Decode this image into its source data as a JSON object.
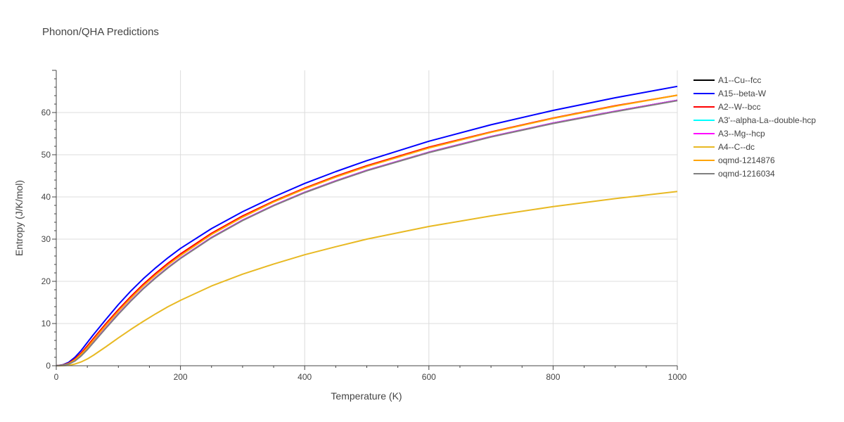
{
  "chart_data": {
    "type": "line",
    "title": "Phonon/QHA Predictions",
    "xlabel": "Temperature (K)",
    "ylabel": "Entropy (J/K/mol)",
    "xlim": [
      0,
      1000
    ],
    "ylim": [
      0,
      70
    ],
    "xticks": [
      0,
      200,
      400,
      600,
      800,
      1000
    ],
    "yticks": [
      0,
      10,
      20,
      30,
      40,
      50,
      60
    ],
    "grid": true,
    "legend_position": "right",
    "series": [
      {
        "name": "A1--Cu--fcc",
        "color": "#000000",
        "x": [
          0,
          10,
          20,
          30,
          40,
          50,
          60,
          80,
          100,
          120,
          140,
          160,
          180,
          200,
          250,
          300,
          350,
          400,
          450,
          500,
          600,
          700,
          800,
          900,
          1000
        ],
        "y": [
          0,
          0.1,
          0.4,
          1.2,
          2.4,
          3.9,
          5.6,
          9.0,
          12.3,
          15.4,
          18.3,
          20.9,
          23.3,
          25.5,
          30.4,
          34.5,
          38.0,
          41.1,
          43.8,
          46.3,
          50.6,
          54.3,
          57.5,
          60.3,
          62.9
        ]
      },
      {
        "name": "A15--beta-W",
        "color": "#0000ff",
        "x": [
          0,
          10,
          20,
          30,
          40,
          50,
          60,
          80,
          100,
          120,
          140,
          160,
          180,
          200,
          250,
          300,
          350,
          400,
          450,
          500,
          600,
          700,
          800,
          900,
          1000
        ],
        "y": [
          0,
          0.2,
          0.8,
          2.0,
          3.6,
          5.5,
          7.4,
          11.0,
          14.5,
          17.7,
          20.6,
          23.2,
          25.6,
          27.8,
          32.5,
          36.5,
          40.0,
          43.2,
          46.0,
          48.6,
          53.2,
          57.1,
          60.5,
          63.5,
          66.2
        ]
      },
      {
        "name": "A2--W--bcc",
        "color": "#ff0000",
        "x": [
          0,
          10,
          20,
          30,
          40,
          50,
          60,
          80,
          100,
          120,
          140,
          160,
          180,
          200,
          250,
          300,
          350,
          400,
          450,
          500,
          600,
          700,
          800,
          900,
          1000
        ],
        "y": [
          0,
          0.15,
          0.6,
          1.6,
          3.0,
          4.7,
          6.5,
          10.0,
          13.3,
          16.4,
          19.3,
          21.9,
          24.3,
          26.5,
          31.4,
          35.5,
          39.0,
          42.1,
          44.9,
          47.4,
          51.8,
          55.4,
          58.7,
          61.6,
          64.1
        ]
      },
      {
        "name": "A3'--alpha-La--double-hcp",
        "color": "#00ffff",
        "x": [
          0,
          10,
          20,
          30,
          40,
          50,
          60,
          80,
          100,
          120,
          140,
          160,
          180,
          200,
          250,
          300,
          350,
          400,
          450,
          500,
          600,
          700,
          800,
          900,
          1000
        ],
        "y": [
          0,
          0.1,
          0.4,
          1.2,
          2.4,
          3.9,
          5.6,
          9.0,
          12.3,
          15.4,
          18.3,
          20.9,
          23.3,
          25.5,
          30.4,
          34.5,
          38.0,
          41.1,
          43.8,
          46.3,
          50.6,
          54.3,
          57.5,
          60.3,
          62.9
        ]
      },
      {
        "name": "A3--Mg--hcp",
        "color": "#ff00ff",
        "x": [
          0,
          10,
          20,
          30,
          40,
          50,
          60,
          80,
          100,
          120,
          140,
          160,
          180,
          200,
          250,
          300,
          350,
          400,
          450,
          500,
          600,
          700,
          800,
          900,
          1000
        ],
        "y": [
          0,
          0.1,
          0.4,
          1.2,
          2.4,
          3.9,
          5.6,
          9.0,
          12.3,
          15.4,
          18.3,
          20.9,
          23.3,
          25.5,
          30.4,
          34.5,
          38.0,
          41.1,
          43.8,
          46.3,
          50.6,
          54.3,
          57.5,
          60.3,
          62.9
        ]
      },
      {
        "name": "A4--C--dc",
        "color": "#e8b923",
        "x": [
          0,
          10,
          20,
          30,
          40,
          50,
          60,
          80,
          100,
          120,
          140,
          160,
          180,
          200,
          250,
          300,
          350,
          400,
          450,
          500,
          600,
          700,
          800,
          900,
          1000
        ],
        "y": [
          0,
          0.02,
          0.1,
          0.4,
          0.9,
          1.6,
          2.5,
          4.5,
          6.6,
          8.6,
          10.5,
          12.3,
          14.0,
          15.5,
          18.9,
          21.7,
          24.1,
          26.3,
          28.2,
          30.0,
          33.0,
          35.5,
          37.7,
          39.6,
          41.3
        ]
      },
      {
        "name": "oqmd-1214876",
        "color": "#ffa500",
        "x": [
          0,
          10,
          20,
          30,
          40,
          50,
          60,
          80,
          100,
          120,
          140,
          160,
          180,
          200,
          250,
          300,
          350,
          400,
          450,
          500,
          600,
          700,
          800,
          900,
          1000
        ],
        "y": [
          0,
          0.12,
          0.5,
          1.4,
          2.7,
          4.3,
          6.1,
          9.6,
          12.9,
          16.0,
          18.9,
          21.5,
          23.9,
          26.1,
          31.1,
          35.2,
          38.8,
          41.9,
          44.7,
          47.2,
          51.6,
          55.3,
          58.6,
          61.5,
          64.1
        ]
      },
      {
        "name": "oqmd-1216034",
        "color": "#808080",
        "x": [
          0,
          10,
          20,
          30,
          40,
          50,
          60,
          80,
          100,
          120,
          140,
          160,
          180,
          200,
          250,
          300,
          350,
          400,
          450,
          500,
          600,
          700,
          800,
          900,
          1000
        ],
        "y": [
          0,
          0.1,
          0.4,
          1.1,
          2.3,
          3.8,
          5.5,
          8.9,
          12.2,
          15.3,
          18.2,
          20.8,
          23.2,
          25.4,
          30.3,
          34.4,
          37.9,
          41.0,
          43.7,
          46.2,
          50.5,
          54.2,
          57.4,
          60.2,
          62.8
        ]
      }
    ]
  }
}
